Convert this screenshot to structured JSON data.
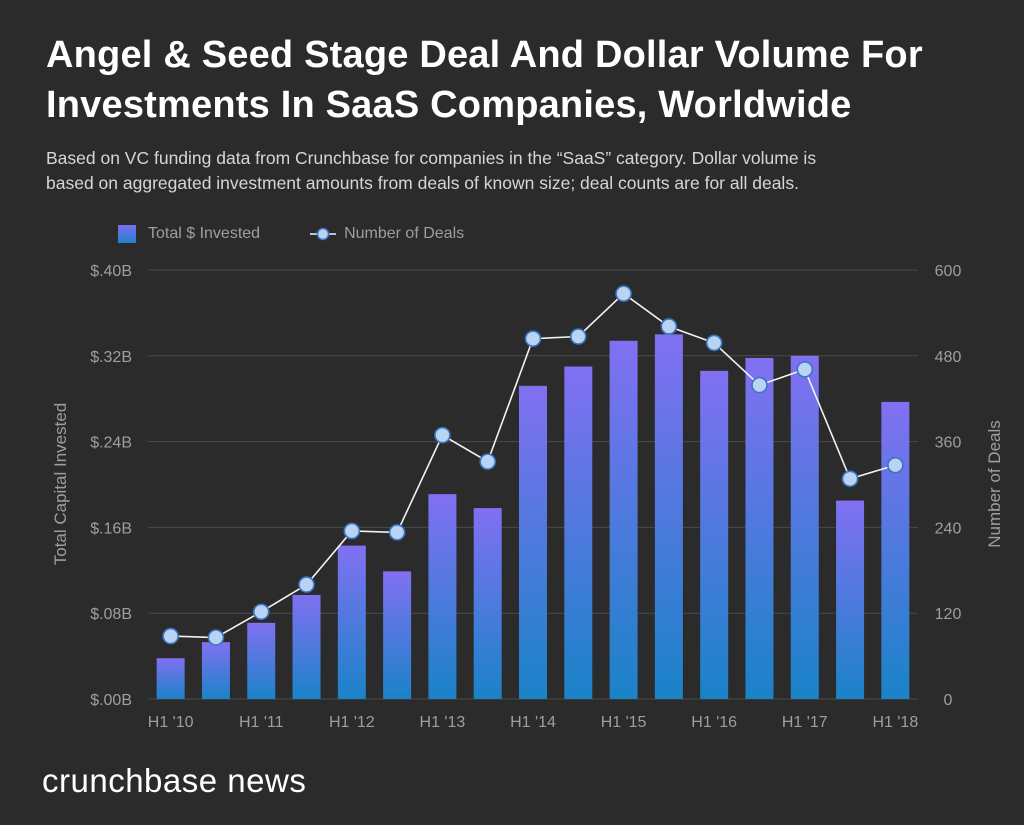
{
  "header": {
    "title_line1": "Angel & Seed Stage Deal And Dollar Volume For",
    "title_line2": "Investments In SaaS Companies, Worldwide",
    "subtitle_line1": "Based on VC funding data from Crunchbase for companies in the “SaaS” category. Dollar volume is",
    "subtitle_line2": "based on aggregated investment amounts from deals of known size; deal counts are for all deals."
  },
  "legend": {
    "bars": "Total $ Invested",
    "line": "Number of Deals"
  },
  "brand": "crunchbase news",
  "colors": {
    "background": "#2b2b2b",
    "bar_top": "#8170f2",
    "bar_bottom": "#1a83c8",
    "line": "#f2f2f2",
    "marker_fill": "#b9d3f3",
    "marker_stroke": "#3a74c4",
    "grid": "#4a4a4a",
    "axis_text": "#9e9e9e"
  },
  "chart_data": {
    "type": "bar+line",
    "categories": [
      "H1 '10",
      "H2 '10",
      "H1 '11",
      "H2 '11",
      "H1 '12",
      "H2 '12",
      "H1 '13",
      "H2 '13",
      "H1 '14",
      "H2 '14",
      "H1 '15",
      "H2 '15",
      "H1 '16",
      "H2 '16",
      "H1 '17",
      "H2 '17",
      "H1 '18"
    ],
    "x_tick_labels": [
      "H1 '10",
      "",
      "H1 '11",
      "",
      "H1 '12",
      "",
      "H1 '13",
      "",
      "H1 '14",
      "",
      "H1 '15",
      "",
      "H1 '16",
      "",
      "H1 '17",
      "",
      "H1 '18"
    ],
    "series": [
      {
        "name": "Total $ Invested",
        "type": "bar",
        "axis": "left",
        "unit": "billions USD",
        "values": [
          0.038,
          0.053,
          0.071,
          0.097,
          0.143,
          0.119,
          0.191,
          0.178,
          0.292,
          0.31,
          0.334,
          0.34,
          0.306,
          0.318,
          0.32,
          0.185,
          0.277
        ]
      },
      {
        "name": "Number of Deals",
        "type": "line",
        "axis": "right",
        "values": [
          88,
          86,
          122,
          160,
          235,
          233,
          369,
          332,
          504,
          507,
          567,
          521,
          498,
          439,
          461,
          308,
          327
        ]
      }
    ],
    "ylabel": "Total Capital Invested",
    "ylabel_right": "Number of Deals",
    "ylim": [
      0,
      0.4
    ],
    "ylim_right": [
      0,
      600
    ],
    "y_ticks": [
      0,
      0.08,
      0.16,
      0.24,
      0.32,
      0.4
    ],
    "y_tick_labels": [
      "$.00B",
      "$.08B",
      "$.16B",
      "$.24B",
      "$.32B",
      "$.40B"
    ],
    "y_right_ticks": [
      0,
      120,
      240,
      360,
      480,
      600
    ],
    "y_right_tick_labels": [
      "0",
      "120",
      "240",
      "360",
      "480",
      "600"
    ],
    "grid": true,
    "legend_position": "top-left"
  }
}
